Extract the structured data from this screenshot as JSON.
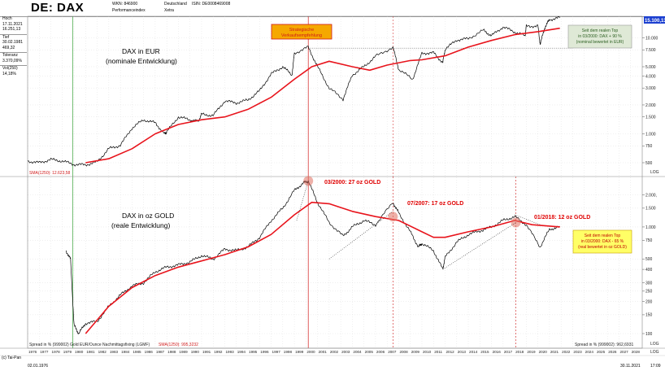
{
  "header": {
    "title": "DE: DAX",
    "wkn": "WKN: 846900",
    "index_type": "Performanceindex",
    "country": "Deutschland",
    "exchange": "Xetra",
    "isin": "ISIN: DE0008469008"
  },
  "side_panel": {
    "hoch_label": "Hoch",
    "hoch_date": "17.11.2021",
    "hoch_value": "16.251,13",
    "tief_label": "Tief",
    "tief_date": "30.02.1981",
    "tief_value": "469,32",
    "toleranz_label": "Toleranz",
    "toleranz_value": "3.370,09%",
    "vol_label": "Vol(250)",
    "vol_value": "14,18%"
  },
  "footer": {
    "copyright": "(c) Tai-Pan",
    "start_date": "02.01.1976",
    "end_date": "30.11.2021",
    "time": "17:09"
  },
  "chart_data": [
    {
      "type": "line",
      "title": "DAX in EUR",
      "subtitle": "(nominale Entwicklung)",
      "scale": "log",
      "x_range": [
        1976,
        2029
      ],
      "y_ticks": [
        500,
        750,
        1000,
        1500,
        2000,
        3000,
        4000,
        5000,
        7500,
        10000
      ],
      "y_tick_labels": [
        "500",
        "750",
        "1.000",
        "1.500",
        "2.000",
        "3.000",
        "4.000",
        "5.000",
        "7.500",
        "10.000"
      ],
      "last_price_label": "15.100,13",
      "series": [
        {
          "name": "DAX",
          "color": "#000000",
          "x": [
            1976,
            1977,
            1978,
            1979,
            1980,
            1981,
            1982,
            1983,
            1984,
            1985,
            1986,
            1987,
            1987.8,
            1988,
            1989,
            1990,
            1990.7,
            1991,
            1992,
            1993,
            1994,
            1995,
            1996,
            1997,
            1998,
            1998.8,
            1999,
            2000.2,
            2001,
            2002,
            2003.2,
            2004,
            2005,
            2006,
            2007.5,
            2008,
            2009.2,
            2010,
            2011,
            2011.8,
            2012,
            2013,
            2014,
            2015.3,
            2016,
            2017,
            2018,
            2018.9,
            2019,
            2020,
            2020.2,
            2020.6,
            2021,
            2021.9
          ],
          "y": [
            520,
            500,
            540,
            520,
            480,
            475,
            510,
            700,
            760,
            1150,
            1400,
            1300,
            1000,
            1050,
            1500,
            1400,
            1350,
            1600,
            1550,
            2200,
            2100,
            2250,
            2800,
            4200,
            5000,
            4100,
            6900,
            8000,
            5000,
            3000,
            2300,
            4100,
            5000,
            6400,
            8000,
            4700,
            3700,
            6900,
            7000,
            5500,
            7600,
            9500,
            9800,
            12000,
            10500,
            13000,
            11500,
            10500,
            13200,
            13300,
            8600,
            12800,
            15500,
            16200
          ]
        },
        {
          "name": "SMA(1250): 12.623,58",
          "color": "#e8141c",
          "x": [
            1981,
            1983,
            1985,
            1987,
            1989,
            1991,
            1993,
            1995,
            1997,
            1999,
            2000.5,
            2002,
            2004,
            2005.5,
            2007,
            2009,
            2010,
            2012,
            2014,
            2016,
            2018,
            2020,
            2021.9
          ],
          "y": [
            500,
            550,
            700,
            1000,
            1250,
            1400,
            1500,
            1800,
            2400,
            3700,
            5000,
            5700,
            5000,
            4600,
            5200,
            5800,
            5900,
            6500,
            8000,
            9400,
            10800,
            11600,
            12600
          ]
        }
      ],
      "reference_line": {
        "y": 7800,
        "style": "dotted"
      },
      "vertical_lines": [
        1979.9,
        2000.2
      ],
      "annotations": [
        {
          "text": "Strategische Verkaufsempfehlung",
          "x": 2000.2
        },
        {
          "text": "Seit dem realen Top in 03/2000: DAX + 90 % (nominal bewertet in EUR)"
        }
      ]
    },
    {
      "type": "line",
      "title": "DAX in oz GOLD",
      "subtitle": "(reale Entwicklung)",
      "scale": "log",
      "x_range": [
        1976,
        2029
      ],
      "y_ticks": [
        100,
        150,
        200,
        250,
        300,
        400,
        500,
        750,
        1000,
        1500,
        2000
      ],
      "y_tick_labels": [
        "100",
        "150",
        "200",
        "250",
        "300",
        "400",
        "500",
        "750",
        "1.000",
        "1.500",
        "2.000,"
      ],
      "spread_label": "Spread in % (999002): 962,6931",
      "series": [
        {
          "name": "Spread in % (999002) Gold EUR/Ounce Nachmittagsfixing (LGMF)",
          "color": "#000000",
          "x": [
            1979.3,
            1979.7,
            1980,
            1980.4,
            1981,
            1982,
            1983,
            1984,
            1985,
            1986,
            1987,
            1988,
            1989,
            1990,
            1991,
            1992,
            1993,
            1994,
            1995,
            1996,
            1997,
            1998,
            1999,
            1999.8,
            2000.2,
            2001,
            2002,
            2003.2,
            2004,
            2005,
            2006,
            2007.5,
            2008,
            2009,
            2009.7,
            2010,
            2011,
            2011.8,
            2012,
            2013,
            2014,
            2015,
            2016,
            2017,
            2018,
            2019,
            2020.2,
            2021,
            2021.9
          ],
          "y": [
            600,
            500,
            120,
            100,
            125,
            130,
            180,
            230,
            280,
            300,
            380,
            420,
            440,
            470,
            540,
            500,
            620,
            600,
            650,
            800,
            1150,
            1500,
            2200,
            2600,
            2700,
            1700,
            1100,
            820,
            1000,
            1150,
            1050,
            1700,
            1350,
            900,
            650,
            700,
            600,
            400,
            520,
            720,
            850,
            920,
            1000,
            1150,
            1250,
            1050,
            650,
            950,
            1000
          ]
        },
        {
          "name": "SMA(1250): 995,3232",
          "color": "#e8141c",
          "x": [
            1981,
            1983,
            1985,
            1987,
            1989,
            1991,
            1993,
            1995,
            1997,
            1999,
            2000.5,
            2002,
            2004,
            2006,
            2008,
            2010,
            2011,
            2012,
            2014,
            2016,
            2018,
            2019.5,
            2021.9
          ],
          "y": [
            100,
            180,
            270,
            350,
            420,
            480,
            550,
            650,
            850,
            1300,
            1700,
            1650,
            1400,
            1250,
            1150,
            900,
            800,
            800,
            900,
            1000,
            1150,
            1050,
            1000
          ]
        }
      ],
      "vertical_lines": [
        2000.2,
        2007.5,
        2018.1
      ],
      "annotations": [
        {
          "text": "03/2000: 27 oz GOLD",
          "x": 2000.2
        },
        {
          "text": "07/2007: 17 oz GOLD",
          "x": 2007.5
        },
        {
          "text": "01/2018: 12 oz GOLD",
          "x": 2018.1
        },
        {
          "text": "Seit dem realen Top in 03/2000: DAX - 65 % (real bewertet in oz GOLD)"
        }
      ]
    }
  ],
  "bottom_axis": {
    "years": [
      "1976",
      "1977",
      "1978",
      "1979",
      "1980",
      "1981",
      "1982",
      "1983",
      "1984",
      "1985",
      "1986",
      "1987",
      "1988",
      "1989",
      "1990",
      "1991",
      "1992",
      "1993",
      "1994",
      "1995",
      "1996",
      "1997",
      "1998",
      "1999",
      "2000",
      "2001",
      "2002",
      "2003",
      "2004",
      "2005",
      "2006",
      "2007",
      "2008",
      "2009",
      "2010",
      "2011",
      "2012",
      "2013",
      "2014",
      "2015",
      "2016",
      "2017",
      "2018",
      "2019",
      "2020",
      "2021",
      "2022",
      "2023",
      "2024",
      "2025",
      "2026",
      "2027",
      "2028"
    ],
    "scale_label": "LOG"
  },
  "colors": {
    "price": "#000000",
    "sma": "#e8141c",
    "grid": "#d8d8d8",
    "callout_orange": "#f5a800",
    "callout_red": "#e00000",
    "note_green_bg": "#dfe9d6",
    "note_yellow_bg": "#ffff66"
  }
}
